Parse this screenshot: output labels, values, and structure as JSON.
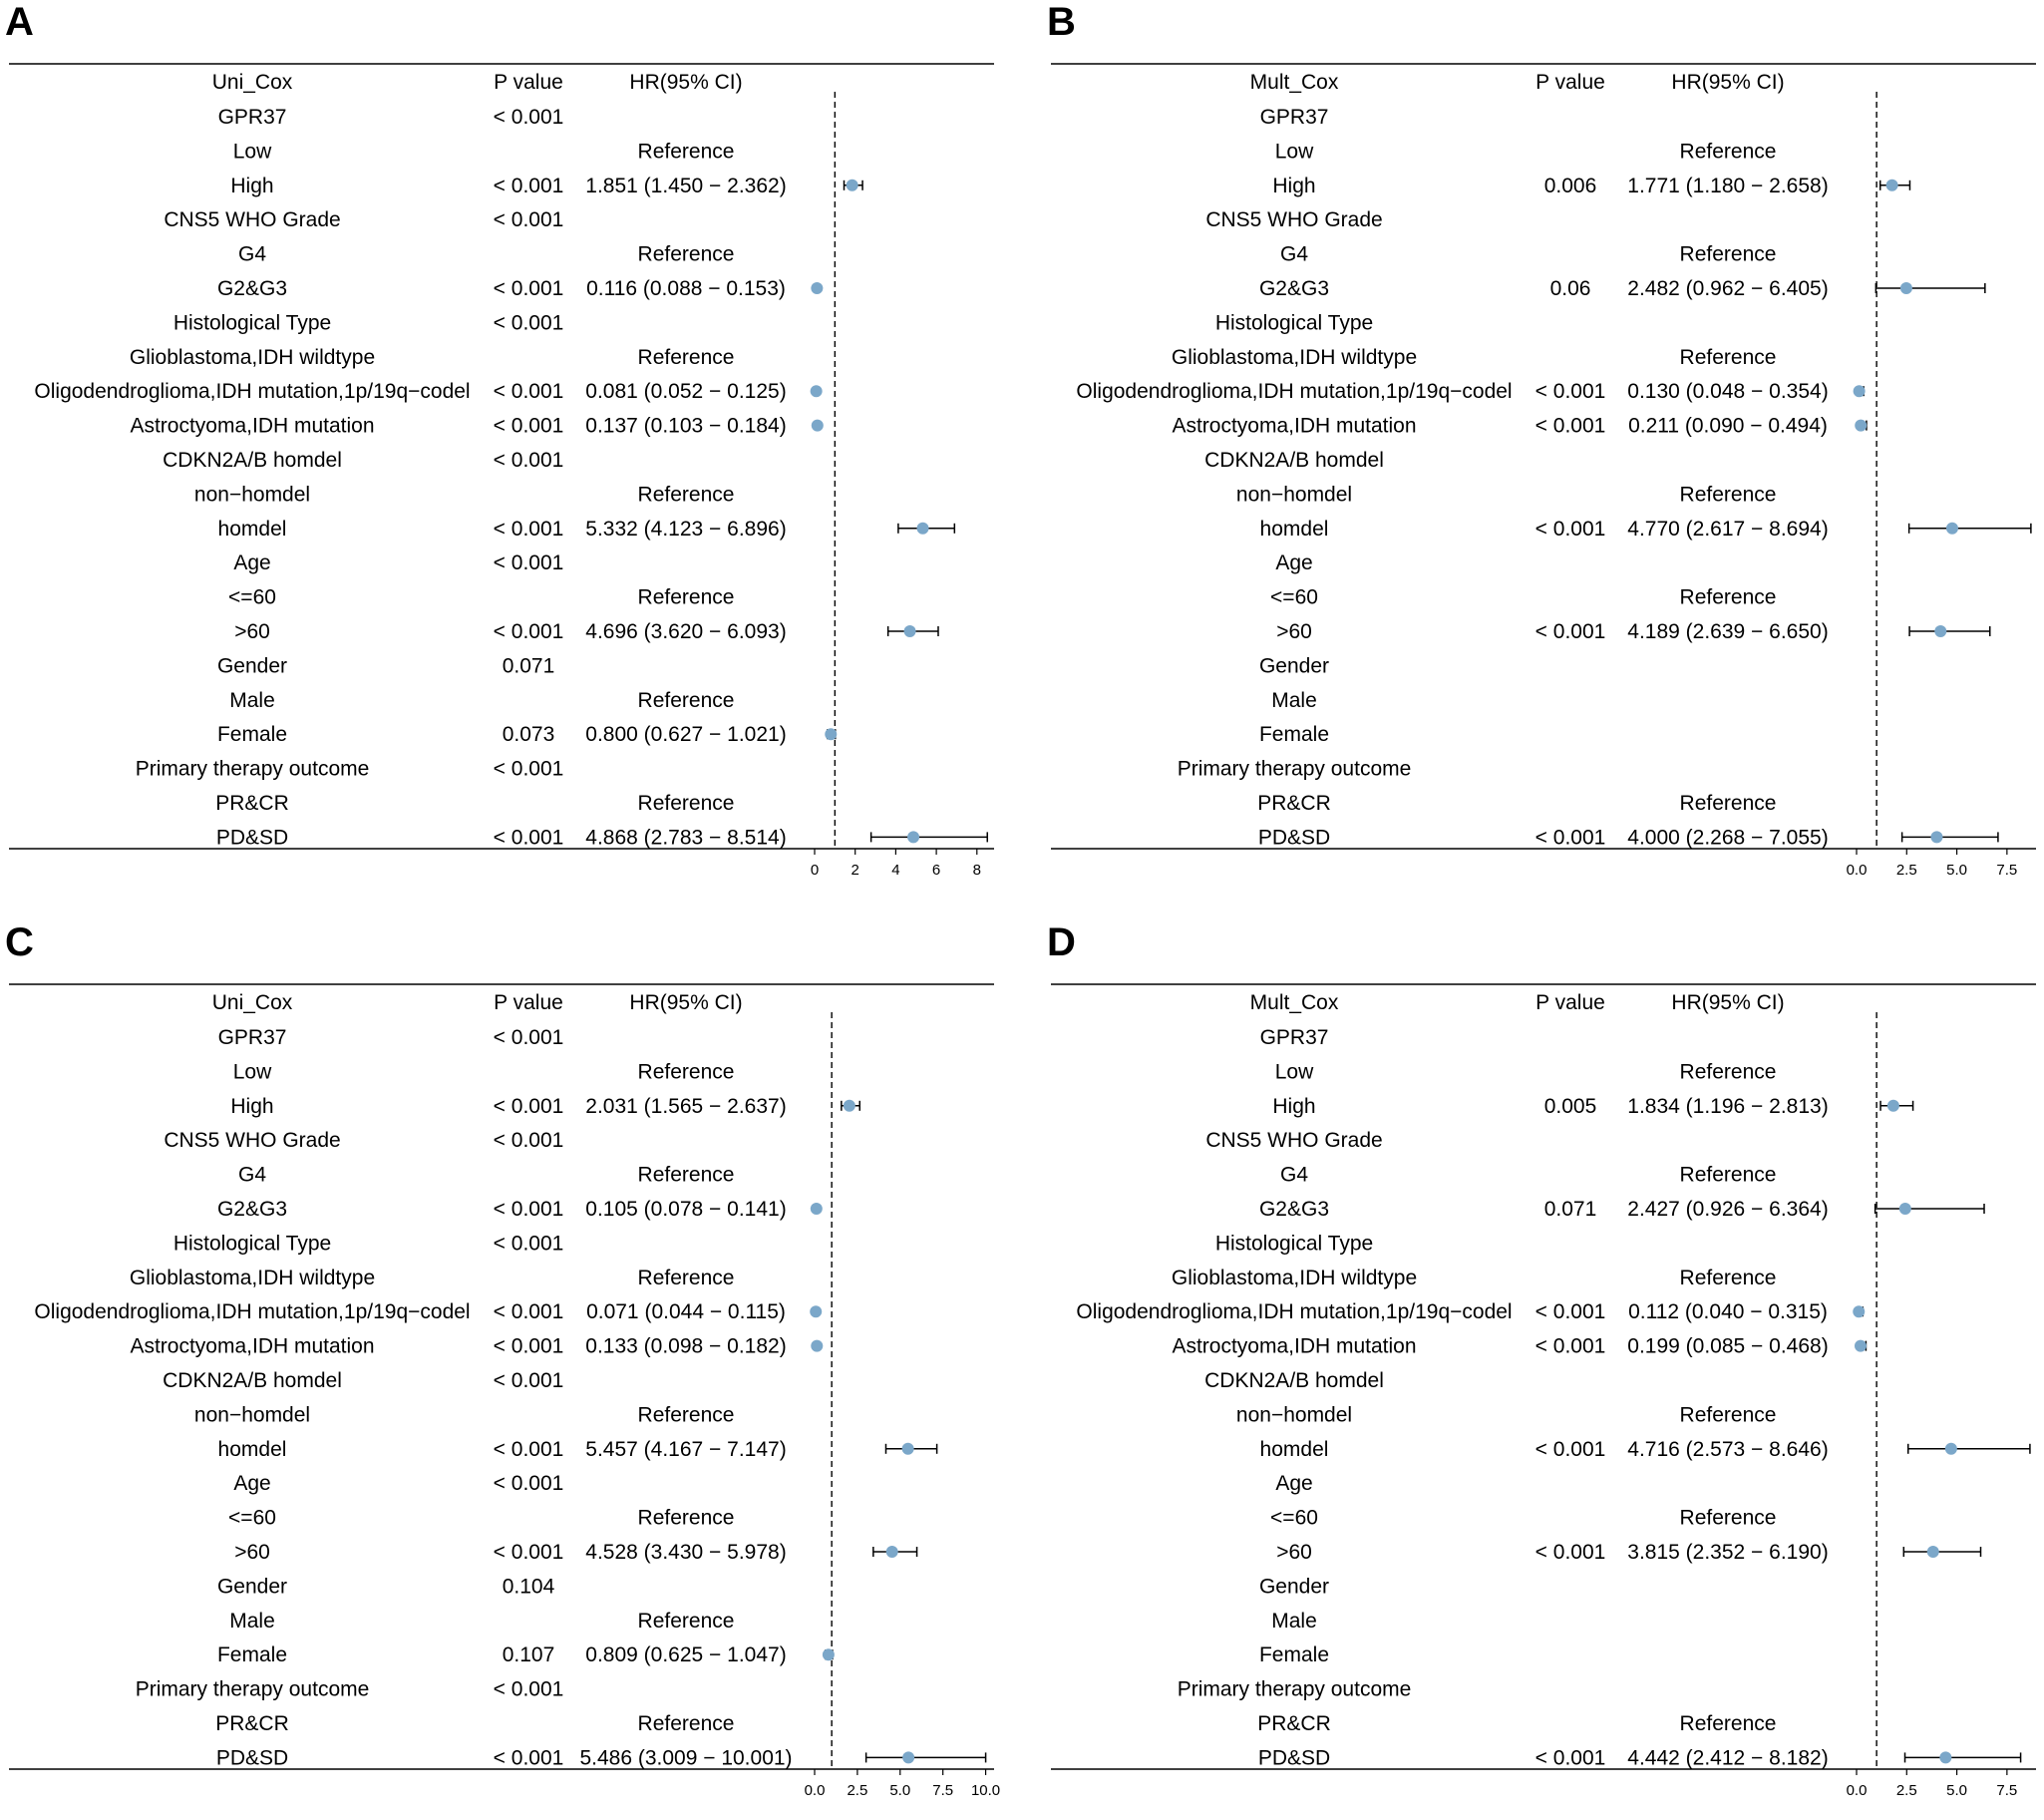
{
  "chart_data": [
    {
      "panel": "A",
      "type": "table",
      "columns": [
        "Uni_Cox",
        "P value",
        "HR(95% CI)"
      ],
      "reference_line": 1,
      "xlim": [
        0,
        8.6
      ],
      "xticks": [
        0,
        2,
        4,
        6,
        8
      ],
      "xtick_labels": [
        "0",
        "2",
        "4",
        "6",
        "8"
      ],
      "rows": [
        {
          "label": "GPR37",
          "p": "< 0.001",
          "hr_text": ""
        },
        {
          "label": "Low",
          "p": "",
          "hr_text": "Reference"
        },
        {
          "label": "High",
          "p": "< 0.001",
          "hr_text": "1.851 (1.450 − 2.362)",
          "hr": 1.851,
          "lo": 1.45,
          "hi": 2.362
        },
        {
          "label": "CNS5 WHO Grade",
          "p": "< 0.001",
          "hr_text": ""
        },
        {
          "label": "G4",
          "p": "",
          "hr_text": "Reference"
        },
        {
          "label": "G2&G3",
          "p": "< 0.001",
          "hr_text": "0.116 (0.088 − 0.153)",
          "hr": 0.116,
          "lo": 0.088,
          "hi": 0.153
        },
        {
          "label": "Histological Type",
          "p": "< 0.001",
          "hr_text": ""
        },
        {
          "label": "Glioblastoma,IDH wildtype",
          "p": "",
          "hr_text": "Reference"
        },
        {
          "label": "Oligodendroglioma,IDH mutation,1p/19q−codel",
          "p": "< 0.001",
          "hr_text": "0.081 (0.052 − 0.125)",
          "hr": 0.081,
          "lo": 0.052,
          "hi": 0.125
        },
        {
          "label": "Astroctyoma,IDH mutation",
          "p": "< 0.001",
          "hr_text": "0.137 (0.103 − 0.184)",
          "hr": 0.137,
          "lo": 0.103,
          "hi": 0.184
        },
        {
          "label": "CDKN2A/B homdel",
          "p": "< 0.001",
          "hr_text": ""
        },
        {
          "label": "non−homdel",
          "p": "",
          "hr_text": "Reference"
        },
        {
          "label": "homdel",
          "p": "< 0.001",
          "hr_text": "5.332 (4.123 − 6.896)",
          "hr": 5.332,
          "lo": 4.123,
          "hi": 6.896
        },
        {
          "label": "Age",
          "p": "< 0.001",
          "hr_text": ""
        },
        {
          "label": "<=60",
          "p": "",
          "hr_text": "Reference"
        },
        {
          "label": ">60",
          "p": "< 0.001",
          "hr_text": "4.696 (3.620 − 6.093)",
          "hr": 4.696,
          "lo": 3.62,
          "hi": 6.093
        },
        {
          "label": "Gender",
          "p": "0.071",
          "hr_text": ""
        },
        {
          "label": "Male",
          "p": "",
          "hr_text": "Reference"
        },
        {
          "label": "Female",
          "p": "0.073",
          "hr_text": "0.800 (0.627 − 1.021)",
          "hr": 0.8,
          "lo": 0.627,
          "hi": 1.021
        },
        {
          "label": "Primary therapy outcome",
          "p": "< 0.001",
          "hr_text": ""
        },
        {
          "label": "PR&CR",
          "p": "",
          "hr_text": "Reference"
        },
        {
          "label": "PD&SD",
          "p": "< 0.001",
          "hr_text": "4.868 (2.783 − 8.514)",
          "hr": 4.868,
          "lo": 2.783,
          "hi": 8.514
        }
      ]
    },
    {
      "panel": "B",
      "type": "table",
      "columns": [
        "Mult_Cox",
        "P value",
        "HR(95% CI)"
      ],
      "reference_line": 1,
      "xlim": [
        0,
        8.7
      ],
      "xticks": [
        0,
        2.5,
        5,
        7.5
      ],
      "xtick_labels": [
        "0.0",
        "2.5",
        "5.0",
        "7.5"
      ],
      "rows": [
        {
          "label": "GPR37",
          "p": "",
          "hr_text": ""
        },
        {
          "label": "Low",
          "p": "",
          "hr_text": "Reference"
        },
        {
          "label": "High",
          "p": "0.006",
          "hr_text": "1.771 (1.180 − 2.658)",
          "hr": 1.771,
          "lo": 1.18,
          "hi": 2.658
        },
        {
          "label": "CNS5 WHO Grade",
          "p": "",
          "hr_text": ""
        },
        {
          "label": "G4",
          "p": "",
          "hr_text": "Reference"
        },
        {
          "label": "G2&G3",
          "p": "0.06",
          "hr_text": "2.482 (0.962 − 6.405)",
          "hr": 2.482,
          "lo": 0.962,
          "hi": 6.405
        },
        {
          "label": "Histological Type",
          "p": "",
          "hr_text": ""
        },
        {
          "label": "Glioblastoma,IDH wildtype",
          "p": "",
          "hr_text": "Reference"
        },
        {
          "label": "Oligodendroglioma,IDH mutation,1p/19q−codel",
          "p": "< 0.001",
          "hr_text": "0.130 (0.048 − 0.354)",
          "hr": 0.13,
          "lo": 0.048,
          "hi": 0.354
        },
        {
          "label": "Astroctyoma,IDH mutation",
          "p": "< 0.001",
          "hr_text": "0.211 (0.090 − 0.494)",
          "hr": 0.211,
          "lo": 0.09,
          "hi": 0.494
        },
        {
          "label": "CDKN2A/B homdel",
          "p": "",
          "hr_text": ""
        },
        {
          "label": "non−homdel",
          "p": "",
          "hr_text": "Reference"
        },
        {
          "label": "homdel",
          "p": "< 0.001",
          "hr_text": "4.770 (2.617 − 8.694)",
          "hr": 4.77,
          "lo": 2.617,
          "hi": 8.694
        },
        {
          "label": "Age",
          "p": "",
          "hr_text": ""
        },
        {
          "label": "<=60",
          "p": "",
          "hr_text": "Reference"
        },
        {
          "label": ">60",
          "p": "< 0.001",
          "hr_text": "4.189 (2.639 − 6.650)",
          "hr": 4.189,
          "lo": 2.639,
          "hi": 6.65
        },
        {
          "label": "Gender",
          "p": "",
          "hr_text": ""
        },
        {
          "label": "Male",
          "p": "",
          "hr_text": ""
        },
        {
          "label": "Female",
          "p": "",
          "hr_text": ""
        },
        {
          "label": "Primary therapy outcome",
          "p": "",
          "hr_text": ""
        },
        {
          "label": "PR&CR",
          "p": "",
          "hr_text": "Reference"
        },
        {
          "label": "PD&SD",
          "p": "< 0.001",
          "hr_text": "4.000 (2.268 − 7.055)",
          "hr": 4.0,
          "lo": 2.268,
          "hi": 7.055
        }
      ]
    },
    {
      "panel": "C",
      "type": "table",
      "columns": [
        "Uni_Cox",
        "P value",
        "HR(95% CI)"
      ],
      "reference_line": 1,
      "xlim": [
        0,
        10.2
      ],
      "xticks": [
        0,
        2.5,
        5,
        7.5,
        10
      ],
      "xtick_labels": [
        "0.0",
        "2.5",
        "5.0",
        "7.5",
        "10.0"
      ],
      "rows": [
        {
          "label": "GPR37",
          "p": "< 0.001",
          "hr_text": ""
        },
        {
          "label": "Low",
          "p": "",
          "hr_text": "Reference"
        },
        {
          "label": "High",
          "p": "< 0.001",
          "hr_text": "2.031 (1.565 − 2.637)",
          "hr": 2.031,
          "lo": 1.565,
          "hi": 2.637
        },
        {
          "label": "CNS5 WHO Grade",
          "p": "< 0.001",
          "hr_text": ""
        },
        {
          "label": "G4",
          "p": "",
          "hr_text": "Reference"
        },
        {
          "label": "G2&G3",
          "p": "< 0.001",
          "hr_text": "0.105 (0.078 − 0.141)",
          "hr": 0.105,
          "lo": 0.078,
          "hi": 0.141
        },
        {
          "label": "Histological Type",
          "p": "< 0.001",
          "hr_text": ""
        },
        {
          "label": "Glioblastoma,IDH wildtype",
          "p": "",
          "hr_text": "Reference"
        },
        {
          "label": "Oligodendroglioma,IDH mutation,1p/19q−codel",
          "p": "< 0.001",
          "hr_text": "0.071 (0.044 − 0.115)",
          "hr": 0.071,
          "lo": 0.044,
          "hi": 0.115
        },
        {
          "label": "Astroctyoma,IDH mutation",
          "p": "< 0.001",
          "hr_text": "0.133 (0.098 − 0.182)",
          "hr": 0.133,
          "lo": 0.098,
          "hi": 0.182
        },
        {
          "label": "CDKN2A/B homdel",
          "p": "< 0.001",
          "hr_text": ""
        },
        {
          "label": "non−homdel",
          "p": "",
          "hr_text": "Reference"
        },
        {
          "label": "homdel",
          "p": "< 0.001",
          "hr_text": "5.457 (4.167 − 7.147)",
          "hr": 5.457,
          "lo": 4.167,
          "hi": 7.147
        },
        {
          "label": "Age",
          "p": "< 0.001",
          "hr_text": ""
        },
        {
          "label": "<=60",
          "p": "",
          "hr_text": "Reference"
        },
        {
          "label": ">60",
          "p": "< 0.001",
          "hr_text": "4.528 (3.430 − 5.978)",
          "hr": 4.528,
          "lo": 3.43,
          "hi": 5.978
        },
        {
          "label": "Gender",
          "p": "0.104",
          "hr_text": ""
        },
        {
          "label": "Male",
          "p": "",
          "hr_text": "Reference"
        },
        {
          "label": "Female",
          "p": "0.107",
          "hr_text": "0.809 (0.625 − 1.047)",
          "hr": 0.809,
          "lo": 0.625,
          "hi": 1.047
        },
        {
          "label": "Primary therapy outcome",
          "p": "< 0.001",
          "hr_text": ""
        },
        {
          "label": "PR&CR",
          "p": "",
          "hr_text": "Reference"
        },
        {
          "label": "PD&SD",
          "p": "< 0.001",
          "hr_text": "5.486 (3.009 − 10.001)",
          "hr": 5.486,
          "lo": 3.009,
          "hi": 10.001
        }
      ]
    },
    {
      "panel": "D",
      "type": "table",
      "columns": [
        "Mult_Cox",
        "P value",
        "HR(95% CI)"
      ],
      "reference_line": 1,
      "xlim": [
        0,
        8.7
      ],
      "xticks": [
        0,
        2.5,
        5,
        7.5
      ],
      "xtick_labels": [
        "0.0",
        "2.5",
        "5.0",
        "7.5"
      ],
      "rows": [
        {
          "label": "GPR37",
          "p": "",
          "hr_text": ""
        },
        {
          "label": "Low",
          "p": "",
          "hr_text": "Reference"
        },
        {
          "label": "High",
          "p": "0.005",
          "hr_text": "1.834 (1.196 − 2.813)",
          "hr": 1.834,
          "lo": 1.196,
          "hi": 2.813
        },
        {
          "label": "CNS5 WHO Grade",
          "p": "",
          "hr_text": ""
        },
        {
          "label": "G4",
          "p": "",
          "hr_text": "Reference"
        },
        {
          "label": "G2&G3",
          "p": "0.071",
          "hr_text": "2.427 (0.926 − 6.364)",
          "hr": 2.427,
          "lo": 0.926,
          "hi": 6.364
        },
        {
          "label": "Histological Type",
          "p": "",
          "hr_text": ""
        },
        {
          "label": "Glioblastoma,IDH wildtype",
          "p": "",
          "hr_text": "Reference"
        },
        {
          "label": "Oligodendroglioma,IDH mutation,1p/19q−codel",
          "p": "< 0.001",
          "hr_text": "0.112 (0.040 − 0.315)",
          "hr": 0.112,
          "lo": 0.04,
          "hi": 0.315
        },
        {
          "label": "Astroctyoma,IDH mutation",
          "p": "< 0.001",
          "hr_text": "0.199 (0.085 − 0.468)",
          "hr": 0.199,
          "lo": 0.085,
          "hi": 0.468
        },
        {
          "label": "CDKN2A/B homdel",
          "p": "",
          "hr_text": ""
        },
        {
          "label": "non−homdel",
          "p": "",
          "hr_text": "Reference"
        },
        {
          "label": "homdel",
          "p": "< 0.001",
          "hr_text": "4.716 (2.573 − 8.646)",
          "hr": 4.716,
          "lo": 2.573,
          "hi": 8.646
        },
        {
          "label": "Age",
          "p": "",
          "hr_text": ""
        },
        {
          "label": "<=60",
          "p": "",
          "hr_text": "Reference"
        },
        {
          "label": ">60",
          "p": "< 0.001",
          "hr_text": "3.815 (2.352 − 6.190)",
          "hr": 3.815,
          "lo": 2.352,
          "hi": 6.19
        },
        {
          "label": "Gender",
          "p": "",
          "hr_text": ""
        },
        {
          "label": "Male",
          "p": "",
          "hr_text": ""
        },
        {
          "label": "Female",
          "p": "",
          "hr_text": ""
        },
        {
          "label": "Primary therapy outcome",
          "p": "",
          "hr_text": ""
        },
        {
          "label": "PR&CR",
          "p": "",
          "hr_text": "Reference"
        },
        {
          "label": "PD&SD",
          "p": "< 0.001",
          "hr_text": "4.442 (2.412 − 8.182)",
          "hr": 4.442,
          "lo": 2.412,
          "hi": 8.182
        }
      ]
    }
  ],
  "colors": {
    "point": "#7ba7c9",
    "line": "#000000"
  }
}
